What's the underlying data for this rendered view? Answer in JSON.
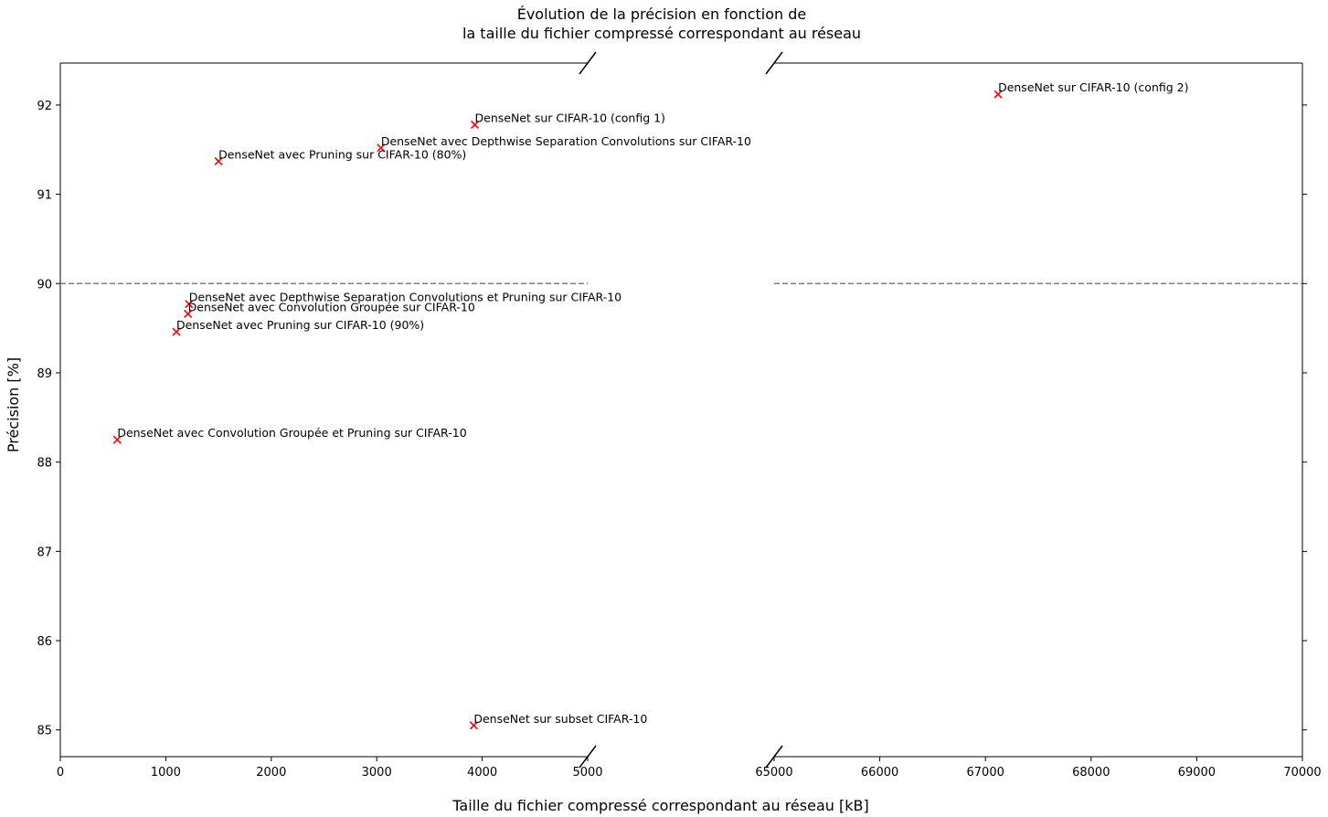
{
  "chart_data": {
    "type": "scatter",
    "title_lines": [
      "Évolution de la précision en fonction de",
      "la taille du fichier compressé correspondant au réseau"
    ],
    "xlabel": "Taille du fichier compressé correspondant au réseau [kB]",
    "ylabel": "Précision [%]",
    "broken_x_axis": true,
    "x_segments": [
      {
        "xlim": [
          0,
          5000
        ],
        "ticks": [
          0,
          1000,
          2000,
          3000,
          4000,
          5000
        ],
        "tick_labels": [
          "0",
          "1000",
          "2000",
          "3000",
          "4000",
          "5000"
        ]
      },
      {
        "xlim": [
          65000,
          70000
        ],
        "ticks": [
          65000,
          66000,
          67000,
          68000,
          69000,
          70000
        ],
        "tick_labels": [
          "65000",
          "66000",
          "67000",
          "68000",
          "69000",
          "70000"
        ]
      }
    ],
    "ylim": [
      84.7,
      92.47
    ],
    "yticks": [
      85,
      86,
      87,
      88,
      89,
      90,
      91,
      92
    ],
    "ytick_labels": [
      "85",
      "86",
      "87",
      "88",
      "89",
      "90",
      "91",
      "92"
    ],
    "reference_line": {
      "y": 90,
      "style": "dashed",
      "color": "#808080"
    },
    "marker": {
      "symbol": "x",
      "color": "#ff0000"
    },
    "grid": false,
    "points": [
      {
        "label": "DenseNet sur CIFAR-10 (config 2)",
        "x": 67120,
        "y": 92.12
      },
      {
        "label": "DenseNet sur CIFAR-10 (config 1)",
        "x": 3930,
        "y": 91.78
      },
      {
        "label": "DenseNet avec Depthwise Separation Convolutions sur CIFAR-10",
        "x": 3040,
        "y": 91.52
      },
      {
        "label": "DenseNet avec Pruning sur CIFAR-10 (80%)",
        "x": 1500,
        "y": 91.37
      },
      {
        "label": "DenseNet avec Depthwise Separation Convolutions et Pruning sur CIFAR-10",
        "x": 1220,
        "y": 89.77
      },
      {
        "label": "DenseNet avec Convolution Groupée sur CIFAR-10",
        "x": 1210,
        "y": 89.66
      },
      {
        "label": "DenseNet avec Pruning sur CIFAR-10 (90%)",
        "x": 1100,
        "y": 89.46
      },
      {
        "label": "DenseNet avec Convolution Groupée et Pruning sur CIFAR-10",
        "x": 540,
        "y": 88.25
      },
      {
        "label": "DenseNet sur subset CIFAR-10",
        "x": 3920,
        "y": 85.05
      }
    ]
  }
}
